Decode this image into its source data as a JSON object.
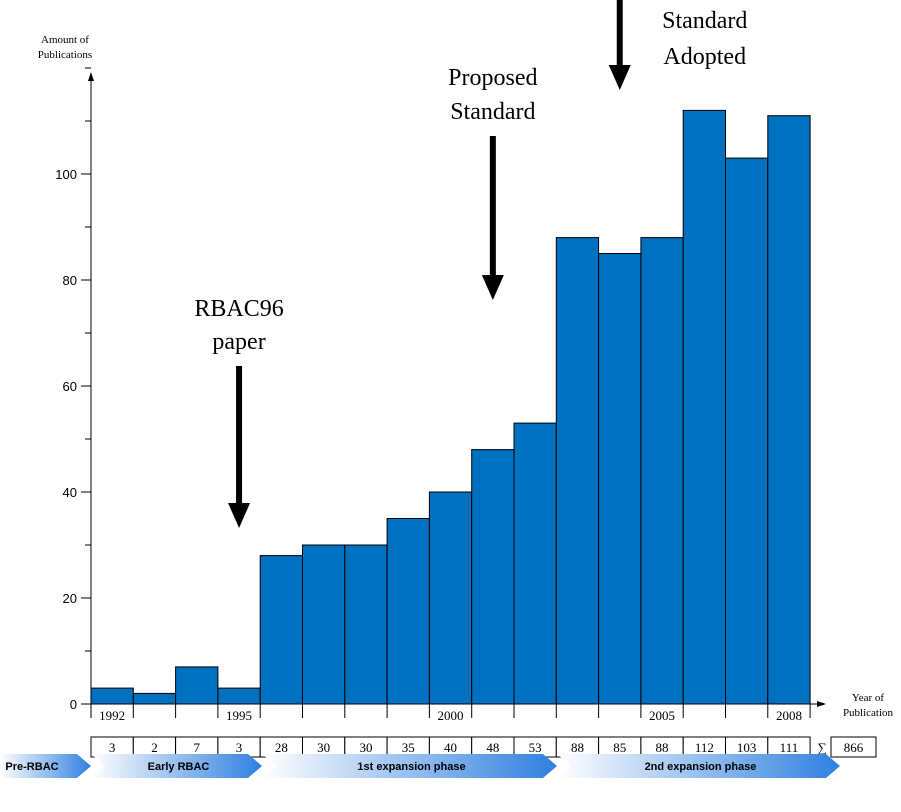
{
  "chart_data": {
    "type": "bar",
    "x": [
      1992,
      1993,
      1994,
      1995,
      1996,
      1997,
      1998,
      1999,
      2000,
      2001,
      2002,
      2003,
      2004,
      2005,
      2006,
      2007,
      2008
    ],
    "values": [
      3,
      2,
      7,
      3,
      28,
      30,
      30,
      35,
      40,
      48,
      53,
      88,
      85,
      88,
      112,
      103,
      111
    ],
    "x_tick_labels": [
      "1992",
      "1995",
      "2000",
      "2005",
      "2008"
    ],
    "y_ticks": [
      0,
      20,
      40,
      60,
      80,
      100
    ],
    "ylim": [
      0,
      120
    ],
    "ylabel_line1": "Amount of",
    "ylabel_line2": "Publications",
    "xlabel_line1": "Year of",
    "xlabel_line2": "Publication",
    "bar_color": "#0070C0",
    "grid": false,
    "annotations": [
      {
        "line1": "RBAC96",
        "line2": "paper",
        "year": 1995.5
      },
      {
        "line1": "Proposed",
        "line2": "Standard",
        "year": 2001.5
      },
      {
        "line1": "Standard",
        "line2": "Adopted",
        "year": 2004.5
      }
    ],
    "counts_row": {
      "values": [
        "3",
        "2",
        "7",
        "3",
        "28",
        "30",
        "30",
        "35",
        "40",
        "48",
        "53",
        "88",
        "85",
        "88",
        "112",
        "103",
        "111"
      ],
      "sum_symbol": "∑",
      "total": "866"
    },
    "phases": [
      {
        "label": "Pre-RBAC",
        "start": 1992,
        "end": 1992
      },
      {
        "label": "Early RBAC",
        "start": 1993,
        "end": 1995
      },
      {
        "label": "1st expansion phase",
        "start": 1996,
        "end": 2002
      },
      {
        "label": "2nd expansion phase",
        "start": 2003,
        "end": 2008
      }
    ]
  }
}
